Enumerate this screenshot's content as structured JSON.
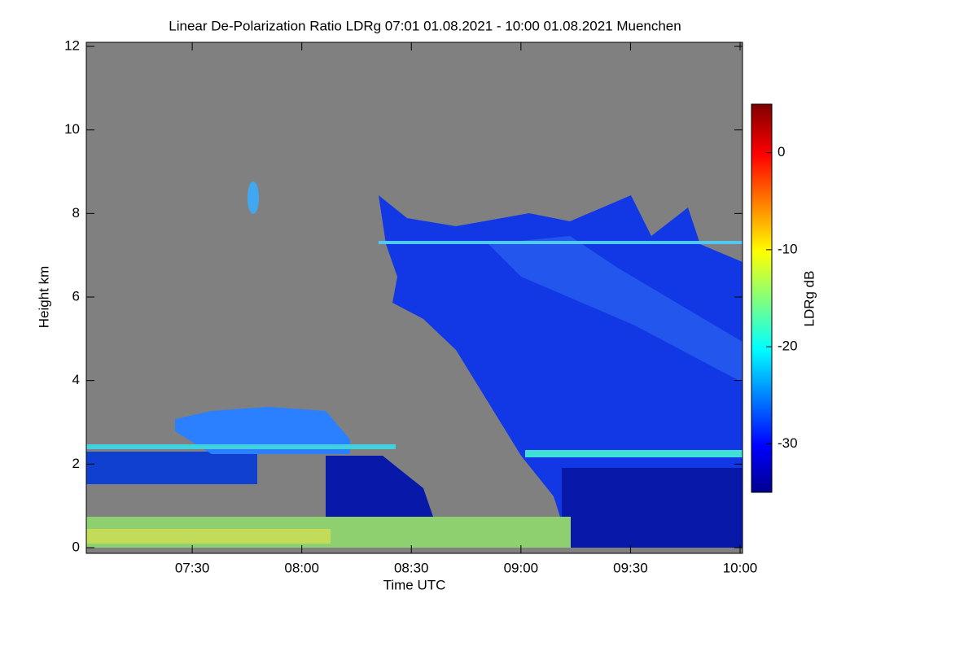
{
  "chart_data": {
    "type": "heatmap",
    "title": "Linear De-Polarization Ratio LDRg   07:01 01.08.2021 - 10:00 01.08.2021 Muenchen",
    "x_label": "Time UTC",
    "y_label": "Height km",
    "colorbar_label": "LDRg dB",
    "xlim": [
      421,
      600
    ],
    "xticks": [
      {
        "value": 450,
        "label": "07:30"
      },
      {
        "value": 480,
        "label": "08:00"
      },
      {
        "value": 510,
        "label": "08:30"
      },
      {
        "value": 540,
        "label": "09:00"
      },
      {
        "value": 570,
        "label": "09:30"
      },
      {
        "value": 600,
        "label": "10:00"
      }
    ],
    "ylim": [
      0,
      12
    ],
    "yticks": [
      0,
      2,
      4,
      6,
      8,
      10,
      12
    ],
    "clim": [
      -35,
      5
    ],
    "cticks": [
      0,
      -10,
      -20,
      -30
    ]
  }
}
